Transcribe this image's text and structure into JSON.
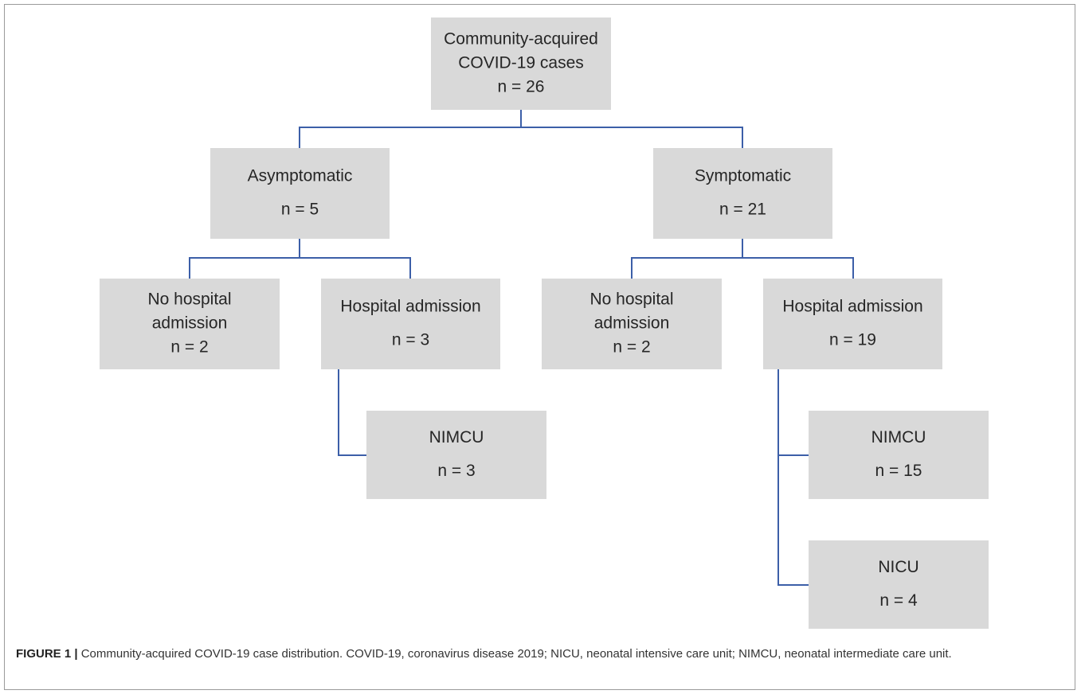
{
  "nodes": [
    {
      "lines": [
        "Community-acquired",
        "COVID-19 cases"
      ],
      "count": "n = 26"
    },
    {
      "lines": [
        "Asymptomatic"
      ],
      "count": "n = 5"
    },
    {
      "lines": [
        "Symptomatic"
      ],
      "count": "n = 21"
    },
    {
      "lines": [
        "No hospital",
        "admission"
      ],
      "count": "n = 2"
    },
    {
      "lines": [
        "Hospital admission"
      ],
      "count": "n = 3"
    },
    {
      "lines": [
        "No hospital",
        "admission"
      ],
      "count": "n = 2"
    },
    {
      "lines": [
        "Hospital admission"
      ],
      "count": "n = 19"
    },
    {
      "lines": [
        "NIMCU"
      ],
      "count": "n = 3"
    },
    {
      "lines": [
        "NIMCU"
      ],
      "count": "n = 15"
    },
    {
      "lines": [
        "NICU"
      ],
      "count": "n = 4"
    }
  ],
  "caption": {
    "label": "FIGURE 1 |",
    "text": "Community-acquired COVID-19 case distribution. COVID-19, coronavirus disease 2019; NICU, neonatal intensive care unit; NIMCU, neonatal intermediate care unit."
  }
}
